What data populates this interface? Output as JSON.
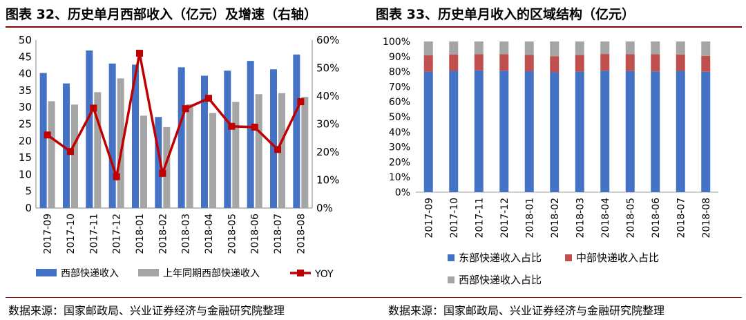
{
  "titles": {
    "left": "图表 32、历史单月西部收入（亿元）及增速（右轴）",
    "right": "图表 33、历史单月收入的区域结构（亿元）"
  },
  "sources": {
    "left": "数据来源：国家邮政局、兴业证券经济与金融研究院整理",
    "right": "数据来源：国家邮政局、兴业证券经济与金融研究院整理"
  },
  "chart_data": [
    {
      "type": "bar",
      "categories": [
        "2017-09",
        "2017-10",
        "2017-11",
        "2017-12",
        "2018-01",
        "2018-02",
        "2018-03",
        "2018-04",
        "2018-05",
        "2018-06",
        "2018-07",
        "2018-08"
      ],
      "series": [
        {
          "name": "西部快递收入",
          "type": "bar",
          "axis": "left",
          "color": "#4472c4",
          "values": [
            40.2,
            37.1,
            46.9,
            43.0,
            42.7,
            27.1,
            41.9,
            39.4,
            40.9,
            43.8,
            41.3,
            45.7
          ]
        },
        {
          "name": "上年同期西部快递收入",
          "type": "bar",
          "axis": "left",
          "color": "#a5a5a5",
          "values": [
            31.8,
            30.8,
            34.5,
            38.6,
            27.5,
            24.1,
            30.9,
            28.3,
            31.6,
            33.9,
            34.2,
            33.1
          ]
        },
        {
          "name": "YOY",
          "type": "line",
          "axis": "right",
          "color": "#c00000",
          "values": [
            26.1,
            20.2,
            35.7,
            11.2,
            55.3,
            12.4,
            35.5,
            39.2,
            29.2,
            28.9,
            20.9,
            38.0
          ]
        }
      ],
      "y_left": {
        "min": 0,
        "max": 50,
        "ticks": [
          "0",
          "5",
          "10",
          "15",
          "20",
          "25",
          "30",
          "35",
          "40",
          "45",
          "50"
        ]
      },
      "y_right": {
        "min": 0,
        "max": 60,
        "ticks": [
          "0%",
          "10%",
          "20%",
          "30%",
          "40%",
          "50%",
          "60%"
        ]
      },
      "legend_position": "bottom"
    },
    {
      "type": "bar",
      "stacked": true,
      "categories": [
        "2017-09",
        "2017-10",
        "2017-11",
        "2017-12",
        "2018-01",
        "2018-02",
        "2018-03",
        "2018-04",
        "2018-05",
        "2018-06",
        "2018-07",
        "2018-08"
      ],
      "series": [
        {
          "name": "东部快递收入占比",
          "color": "#4472c4",
          "values": [
            80.0,
            80.5,
            80.8,
            80.6,
            80.3,
            79.6,
            80.0,
            80.6,
            80.4,
            80.2,
            80.5,
            79.9
          ]
        },
        {
          "name": "中部快递收入占比",
          "color": "#c0504d",
          "values": [
            10.8,
            10.9,
            10.7,
            10.9,
            10.8,
            10.6,
            11.0,
            11.1,
            11.2,
            11.3,
            10.9,
            10.5
          ]
        },
        {
          "name": "西部快递收入占比",
          "color": "#a5a5a5",
          "values": [
            9.2,
            8.6,
            8.5,
            8.5,
            8.9,
            9.8,
            9.0,
            8.3,
            8.4,
            8.5,
            8.6,
            9.6
          ]
        }
      ],
      "y": {
        "min": 0,
        "max": 100,
        "ticks": [
          "0%",
          "10%",
          "20%",
          "30%",
          "40%",
          "50%",
          "60%",
          "70%",
          "80%",
          "90%",
          "100%"
        ]
      },
      "legend_position": "bottom"
    }
  ]
}
